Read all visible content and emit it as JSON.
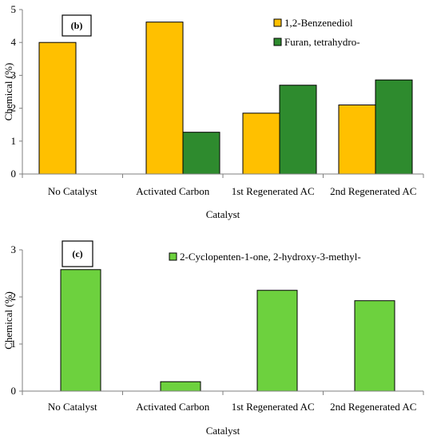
{
  "chart_data": [
    {
      "type": "bar",
      "panel_label": "(b)",
      "categories": [
        "No Catalyst",
        "Activated Carbon",
        "1st Regenerated AC",
        "2nd Regenerated AC"
      ],
      "series": [
        {
          "name": "1,2-Benzenediol",
          "color": "#FFC000",
          "values": [
            4.0,
            4.62,
            1.85,
            2.1
          ]
        },
        {
          "name": "Furan, tetrahydro-",
          "color": "#2E8B2E",
          "values": [
            null,
            1.27,
            2.7,
            2.86
          ]
        }
      ],
      "xlabel": "Catalyst",
      "ylabel": "Chemical (%)",
      "ylim": [
        0,
        5
      ],
      "yticks": [
        "0",
        "1",
        "2",
        "3",
        "4",
        "5"
      ],
      "grid": false,
      "legend_position": "top-right"
    },
    {
      "type": "bar",
      "panel_label": "(c)",
      "categories": [
        "No Catalyst",
        "Activated Carbon",
        "1st Regenerated AC",
        "2nd Regenerated AC"
      ],
      "series": [
        {
          "name": "2-Cyclopenten-1-one, 2-hydroxy-3-methyl-",
          "color": "#6DD13E",
          "values": [
            2.58,
            0.2,
            2.14,
            1.92
          ]
        }
      ],
      "xlabel": "Catalyst",
      "ylabel": "Chemical (%)",
      "ylim": [
        0,
        3
      ],
      "yticks": [
        "0",
        "1",
        "2",
        "3"
      ],
      "grid": false,
      "legend_position": "top-right"
    }
  ]
}
